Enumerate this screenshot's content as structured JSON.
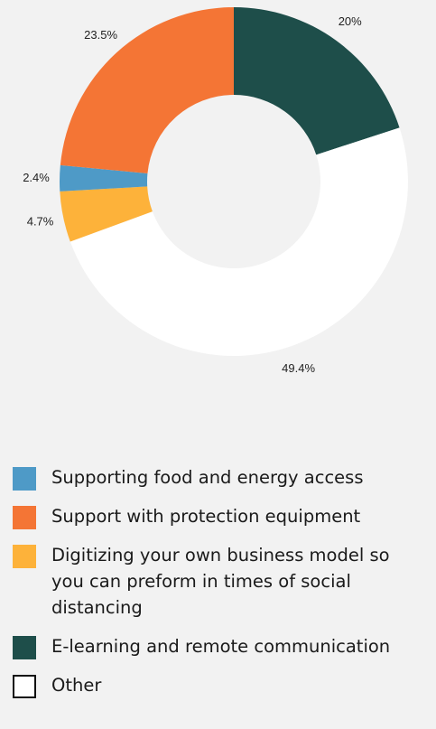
{
  "chart_data": {
    "type": "pie",
    "donut": true,
    "legend_position": "bottom",
    "slices": [
      {
        "name": "E-learning and remote communication",
        "value": 20,
        "label": "20%",
        "color": "#1e4e4a"
      },
      {
        "name": "Other",
        "value": 49.4,
        "label": "49.4%",
        "color": "#ffffff"
      },
      {
        "name": "Digitizing your own business model so you can preform in times of social distancing",
        "value": 4.7,
        "label": "4.7%",
        "color": "#fdb23a"
      },
      {
        "name": "Supporting food and energy access",
        "value": 2.4,
        "label": "2.4%",
        "color": "#4e9ac7"
      },
      {
        "name": "Support with protection equipment",
        "value": 23.5,
        "label": "23.5%",
        "color": "#f47535"
      }
    ]
  },
  "legend": [
    {
      "label": "Supporting food and energy access",
      "color": "#4e9ac7"
    },
    {
      "label": "Support with protection equipment",
      "color": "#f47535"
    },
    {
      "label": "Digitizing your own business model so you can preform in times of social distancing",
      "color": "#fdb23a"
    },
    {
      "label": "E-learning and remote communication",
      "color": "#1e4e4a"
    },
    {
      "label": "Other",
      "color": "#ffffff"
    }
  ]
}
